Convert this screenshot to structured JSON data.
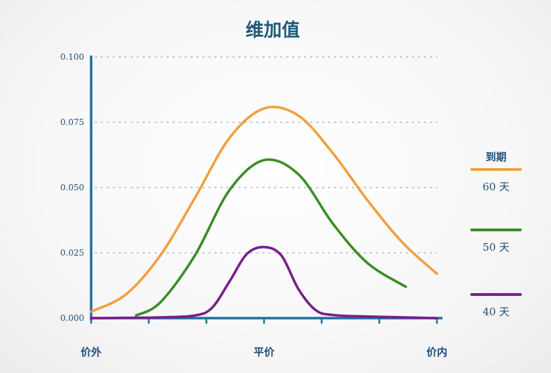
{
  "chart_data": {
    "type": "line",
    "title": "维加值",
    "xlabel": "",
    "ylabel": "",
    "x_categories": [
      "价外",
      "平价",
      "价内"
    ],
    "x": [
      0,
      0.1,
      0.2,
      0.3,
      0.4,
      0.5,
      0.6,
      0.7,
      0.8,
      0.9,
      1.0
    ],
    "ylim": [
      0,
      0.1
    ],
    "yticks": [
      "0.000",
      "0.025",
      "0.050",
      "0.075",
      "0.100"
    ],
    "grid": "horizontal-dotted",
    "legend_title": "到期",
    "legend_placement": "right",
    "series": [
      {
        "name": "60 天",
        "color": "#f0a040",
        "x": [
          0,
          0.1,
          0.2,
          0.3,
          0.4,
          0.5,
          0.6,
          0.7,
          0.8,
          0.9,
          1.0
        ],
        "values": [
          0.0025,
          0.009,
          0.024,
          0.046,
          0.069,
          0.0803,
          0.0775,
          0.063,
          0.045,
          0.029,
          0.017
        ]
      },
      {
        "name": "50 天",
        "color": "#3c8c28",
        "x": [
          0.13,
          0.2,
          0.3,
          0.4,
          0.5,
          0.6,
          0.7,
          0.8,
          0.91
        ],
        "values": [
          0.001,
          0.006,
          0.024,
          0.049,
          0.0605,
          0.055,
          0.036,
          0.021,
          0.012
        ]
      },
      {
        "name": "40 天",
        "color": "#7a1e8c",
        "x": [
          0,
          0.1,
          0.2,
          0.3,
          0.35,
          0.4,
          0.45,
          0.5,
          0.55,
          0.6,
          0.65,
          0.7,
          0.8,
          1.0
        ],
        "values": [
          0,
          0.0001,
          0.0003,
          0.001,
          0.004,
          0.014,
          0.0245,
          0.0272,
          0.024,
          0.011,
          0.003,
          0.0012,
          0.0006,
          0
        ]
      }
    ]
  }
}
